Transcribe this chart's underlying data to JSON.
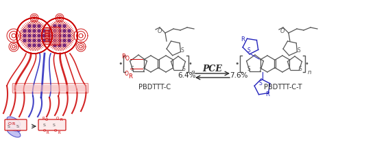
{
  "bg_color": "#ffffff",
  "pce_left": "6.4%",
  "pce_right": "7.6%",
  "pce_label": "PCE",
  "label_left": "PBDTTT-C",
  "label_right": "PBDTTT-C-T",
  "red": "#cc0000",
  "blue": "#2222bb",
  "dark": "#2a2a2a",
  "mol_gray": "#555555",
  "pink_fill": "#f5b8b8",
  "light_pink": "#fce8e8",
  "light_blue_fill": "#aaaaee"
}
